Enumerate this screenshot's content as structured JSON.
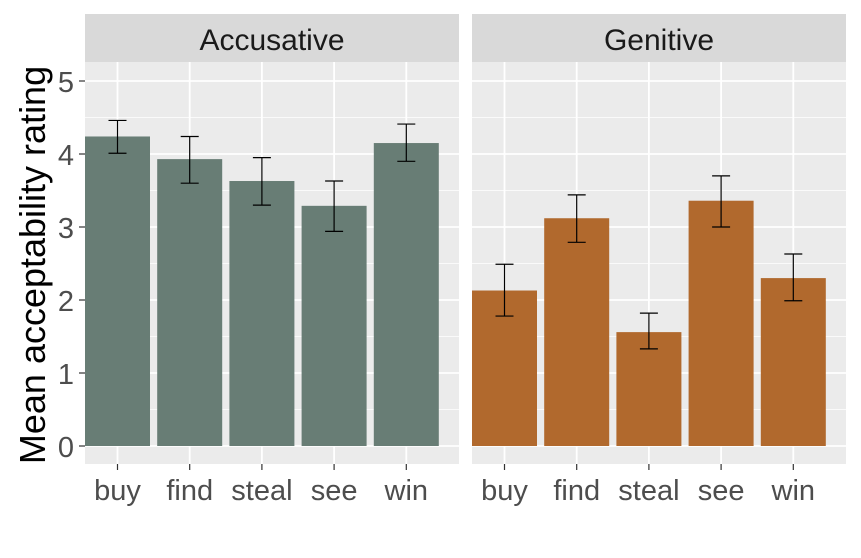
{
  "chart_data": {
    "type": "bar",
    "ylabel": "Mean acceptability rating",
    "xlabel": "",
    "ylim": [
      0,
      5
    ],
    "yticks": [
      "0",
      "1",
      "2",
      "3",
      "4",
      "5"
    ],
    "categories": [
      "buy",
      "find",
      "steal",
      "see",
      "win"
    ],
    "grid": true,
    "panels": [
      {
        "name": "Accusative",
        "color": "#687d75",
        "values": [
          4.24,
          3.93,
          3.63,
          3.29,
          4.15
        ],
        "error_low": [
          4.01,
          3.6,
          3.3,
          2.94,
          3.9
        ],
        "error_high": [
          4.46,
          4.24,
          3.95,
          3.63,
          4.41
        ]
      },
      {
        "name": "Genitive",
        "color": "#b1692d",
        "values": [
          2.13,
          3.12,
          1.56,
          3.36,
          2.3
        ],
        "error_low": [
          1.78,
          2.79,
          1.33,
          3.0,
          1.99
        ],
        "error_high": [
          2.49,
          3.44,
          1.82,
          3.7,
          2.63
        ]
      }
    ]
  }
}
